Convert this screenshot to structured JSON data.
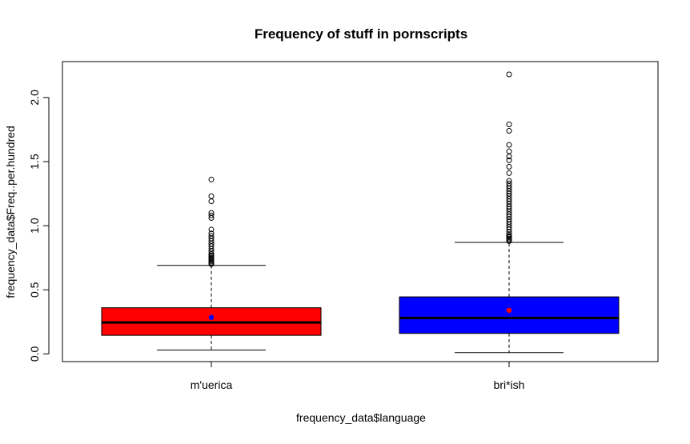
{
  "chart_data": {
    "type": "box",
    "title": "Frequency of stuff in pornscripts",
    "xlabel": "frequency_data$language",
    "ylabel": "frequency_data$Freq..per.hundred",
    "ylim": [
      -0.06,
      2.28
    ],
    "y_ticks": [
      0.0,
      0.5,
      1.0,
      1.5,
      2.0
    ],
    "y_tick_labels": [
      "0.0",
      "0.5",
      "1.0",
      "1.5",
      "2.0"
    ],
    "grid": false,
    "legend": "none",
    "categories": [
      "m'uerica",
      "bri*ish"
    ],
    "series": [
      {
        "category": "m'uerica",
        "whisker_low": 0.03,
        "q1": 0.145,
        "median": 0.245,
        "q3": 0.36,
        "whisker_high": 0.69,
        "mean": 0.285,
        "box_color": "#ff0000",
        "mean_color": "#0000ff",
        "outliers": [
          0.7,
          0.71,
          0.72,
          0.73,
          0.74,
          0.75,
          0.76,
          0.77,
          0.78,
          0.8,
          0.82,
          0.84,
          0.86,
          0.88,
          0.9,
          0.92,
          0.94,
          0.97,
          1.06,
          1.08,
          1.1,
          1.19,
          1.23,
          1.36
        ]
      },
      {
        "category": "bri*ish",
        "whisker_low": 0.01,
        "q1": 0.16,
        "median": 0.28,
        "q3": 0.445,
        "whisker_high": 0.87,
        "mean": 0.34,
        "box_color": "#0000ff",
        "mean_color": "#ff0000",
        "outliers": [
          0.88,
          0.89,
          0.9,
          0.91,
          0.92,
          0.93,
          0.95,
          0.97,
          0.99,
          1.01,
          1.03,
          1.05,
          1.07,
          1.09,
          1.11,
          1.13,
          1.15,
          1.17,
          1.19,
          1.21,
          1.23,
          1.25,
          1.27,
          1.29,
          1.31,
          1.33,
          1.35,
          1.41,
          1.46,
          1.51,
          1.54,
          1.58,
          1.63,
          1.74,
          1.79,
          2.18
        ]
      }
    ]
  }
}
